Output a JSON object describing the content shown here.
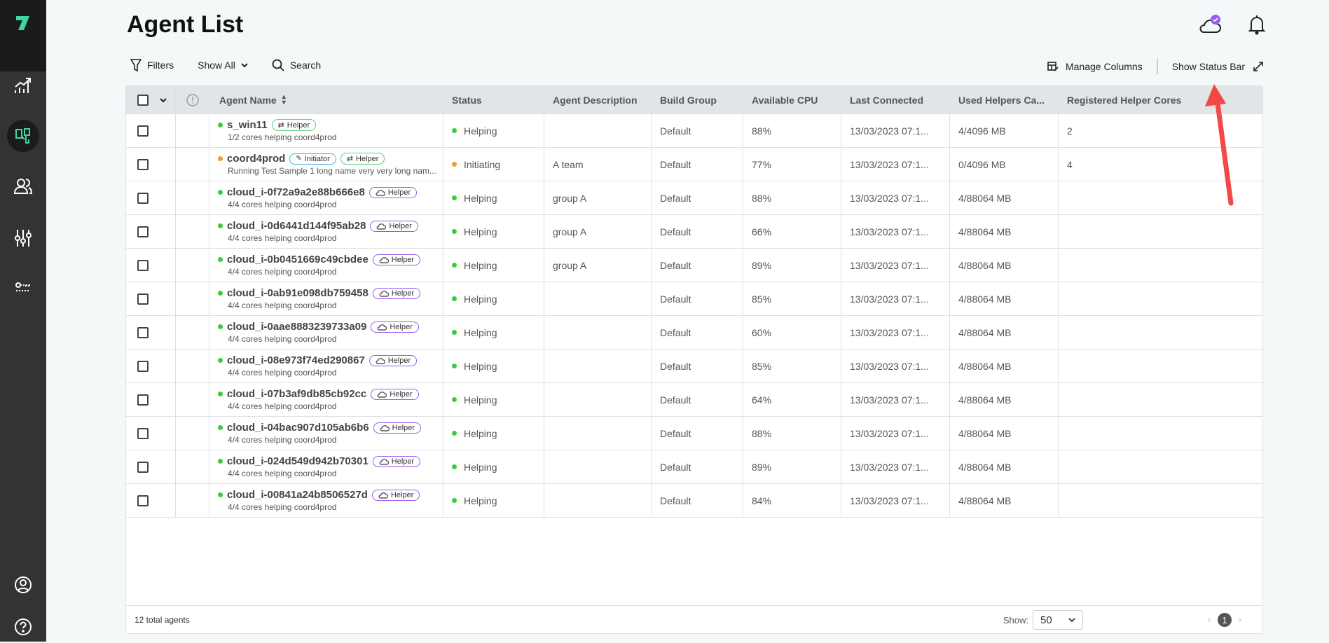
{
  "header": {
    "title": "Agent List"
  },
  "toolbar": {
    "filters": "Filters",
    "show_all": "Show All",
    "search": "Search",
    "manage_columns": "Manage Columns",
    "show_status_bar": "Show Status Bar"
  },
  "colors": {
    "online": "#3ccb3c",
    "initiating": "#f0983e",
    "helper_badge": "#5fd07a",
    "initiator_badge": "#4ab0e0",
    "cloud_badge": "#9a5cf0",
    "accent": "#3fd6a0",
    "annotation_arrow": "#f24848"
  },
  "columns": [
    "Agent Name",
    "Status",
    "Agent Description",
    "Build Group",
    "Available CPU",
    "Last Connected",
    "Used Helpers Ca...",
    "Registered Helper Cores"
  ],
  "rows": [
    {
      "name": "s_win11",
      "sub": "1/2 cores helping coord4prod",
      "dot": "green",
      "badges": [
        "Helper"
      ],
      "badge_type": "helper",
      "status": "Helping",
      "desc": "",
      "group": "Default",
      "cpu": "88%",
      "last": "13/03/2023 07:1...",
      "used": "4/4096 MB",
      "reg": "2"
    },
    {
      "name": "coord4prod",
      "sub": "Running Test Sample 1 long name very very long nam...",
      "dot": "orange",
      "badges": [
        "Initiator",
        "Helper"
      ],
      "badge_type": "initiator",
      "status": "Initiating",
      "desc": "A team",
      "group": "Default",
      "cpu": "77%",
      "last": "13/03/2023 07:1...",
      "used": "0/4096 MB",
      "reg": "4"
    },
    {
      "name": "cloud_i-0f72a9a2e88b666e8",
      "sub": "4/4 cores helping coord4prod",
      "dot": "green",
      "badges": [
        "Helper"
      ],
      "badge_type": "cloud",
      "status": "Helping",
      "desc": "group A",
      "group": "Default",
      "cpu": "88%",
      "last": "13/03/2023 07:1...",
      "used": "4/88064 MB",
      "reg": ""
    },
    {
      "name": "cloud_i-0d6441d144f95ab28",
      "sub": "4/4 cores helping coord4prod",
      "dot": "green",
      "badges": [
        "Helper"
      ],
      "badge_type": "cloud",
      "status": "Helping",
      "desc": "group A",
      "group": "Default",
      "cpu": "66%",
      "last": "13/03/2023 07:1...",
      "used": "4/88064 MB",
      "reg": ""
    },
    {
      "name": "cloud_i-0b0451669c49cbdee",
      "sub": "4/4 cores helping coord4prod",
      "dot": "green",
      "badges": [
        "Helper"
      ],
      "badge_type": "cloud",
      "status": "Helping",
      "desc": "group A",
      "group": "Default",
      "cpu": "89%",
      "last": "13/03/2023 07:1...",
      "used": "4/88064 MB",
      "reg": ""
    },
    {
      "name": "cloud_i-0ab91e098db759458",
      "sub": "4/4 cores helping coord4prod",
      "dot": "green",
      "badges": [
        "Helper"
      ],
      "badge_type": "cloud",
      "status": "Helping",
      "desc": "",
      "group": "Default",
      "cpu": "85%",
      "last": "13/03/2023 07:1...",
      "used": "4/88064 MB",
      "reg": ""
    },
    {
      "name": "cloud_i-0aae8883239733a09",
      "sub": "4/4 cores helping coord4prod",
      "dot": "green",
      "badges": [
        "Helper"
      ],
      "badge_type": "cloud",
      "status": "Helping",
      "desc": "",
      "group": "Default",
      "cpu": "60%",
      "last": "13/03/2023 07:1...",
      "used": "4/88064 MB",
      "reg": ""
    },
    {
      "name": "cloud_i-08e973f74ed290867",
      "sub": "4/4 cores helping coord4prod",
      "dot": "green",
      "badges": [
        "Helper"
      ],
      "badge_type": "cloud",
      "status": "Helping",
      "desc": "",
      "group": "Default",
      "cpu": "85%",
      "last": "13/03/2023 07:1...",
      "used": "4/88064 MB",
      "reg": ""
    },
    {
      "name": "cloud_i-07b3af9db85cb92cc",
      "sub": "4/4 cores helping coord4prod",
      "dot": "green",
      "badges": [
        "Helper"
      ],
      "badge_type": "cloud",
      "status": "Helping",
      "desc": "",
      "group": "Default",
      "cpu": "64%",
      "last": "13/03/2023 07:1...",
      "used": "4/88064 MB",
      "reg": ""
    },
    {
      "name": "cloud_i-04bac907d105ab6b6",
      "sub": "4/4 cores helping coord4prod",
      "dot": "green",
      "badges": [
        "Helper"
      ],
      "badge_type": "cloud",
      "status": "Helping",
      "desc": "",
      "group": "Default",
      "cpu": "88%",
      "last": "13/03/2023 07:1...",
      "used": "4/88064 MB",
      "reg": ""
    },
    {
      "name": "cloud_i-024d549d942b70301",
      "sub": "4/4 cores helping coord4prod",
      "dot": "green",
      "badges": [
        "Helper"
      ],
      "badge_type": "cloud",
      "status": "Helping",
      "desc": "",
      "group": "Default",
      "cpu": "89%",
      "last": "13/03/2023 07:1...",
      "used": "4/88064 MB",
      "reg": ""
    },
    {
      "name": "cloud_i-00841a24b8506527d",
      "sub": "4/4 cores helping coord4prod",
      "dot": "green",
      "badges": [
        "Helper"
      ],
      "badge_type": "cloud",
      "status": "Helping",
      "desc": "",
      "group": "Default",
      "cpu": "84%",
      "last": "13/03/2023 07:1...",
      "used": "4/88064 MB",
      "reg": ""
    }
  ],
  "footer": {
    "total": "12 total agents",
    "show_label": "Show:",
    "page_size": "50",
    "current_page": "1"
  }
}
